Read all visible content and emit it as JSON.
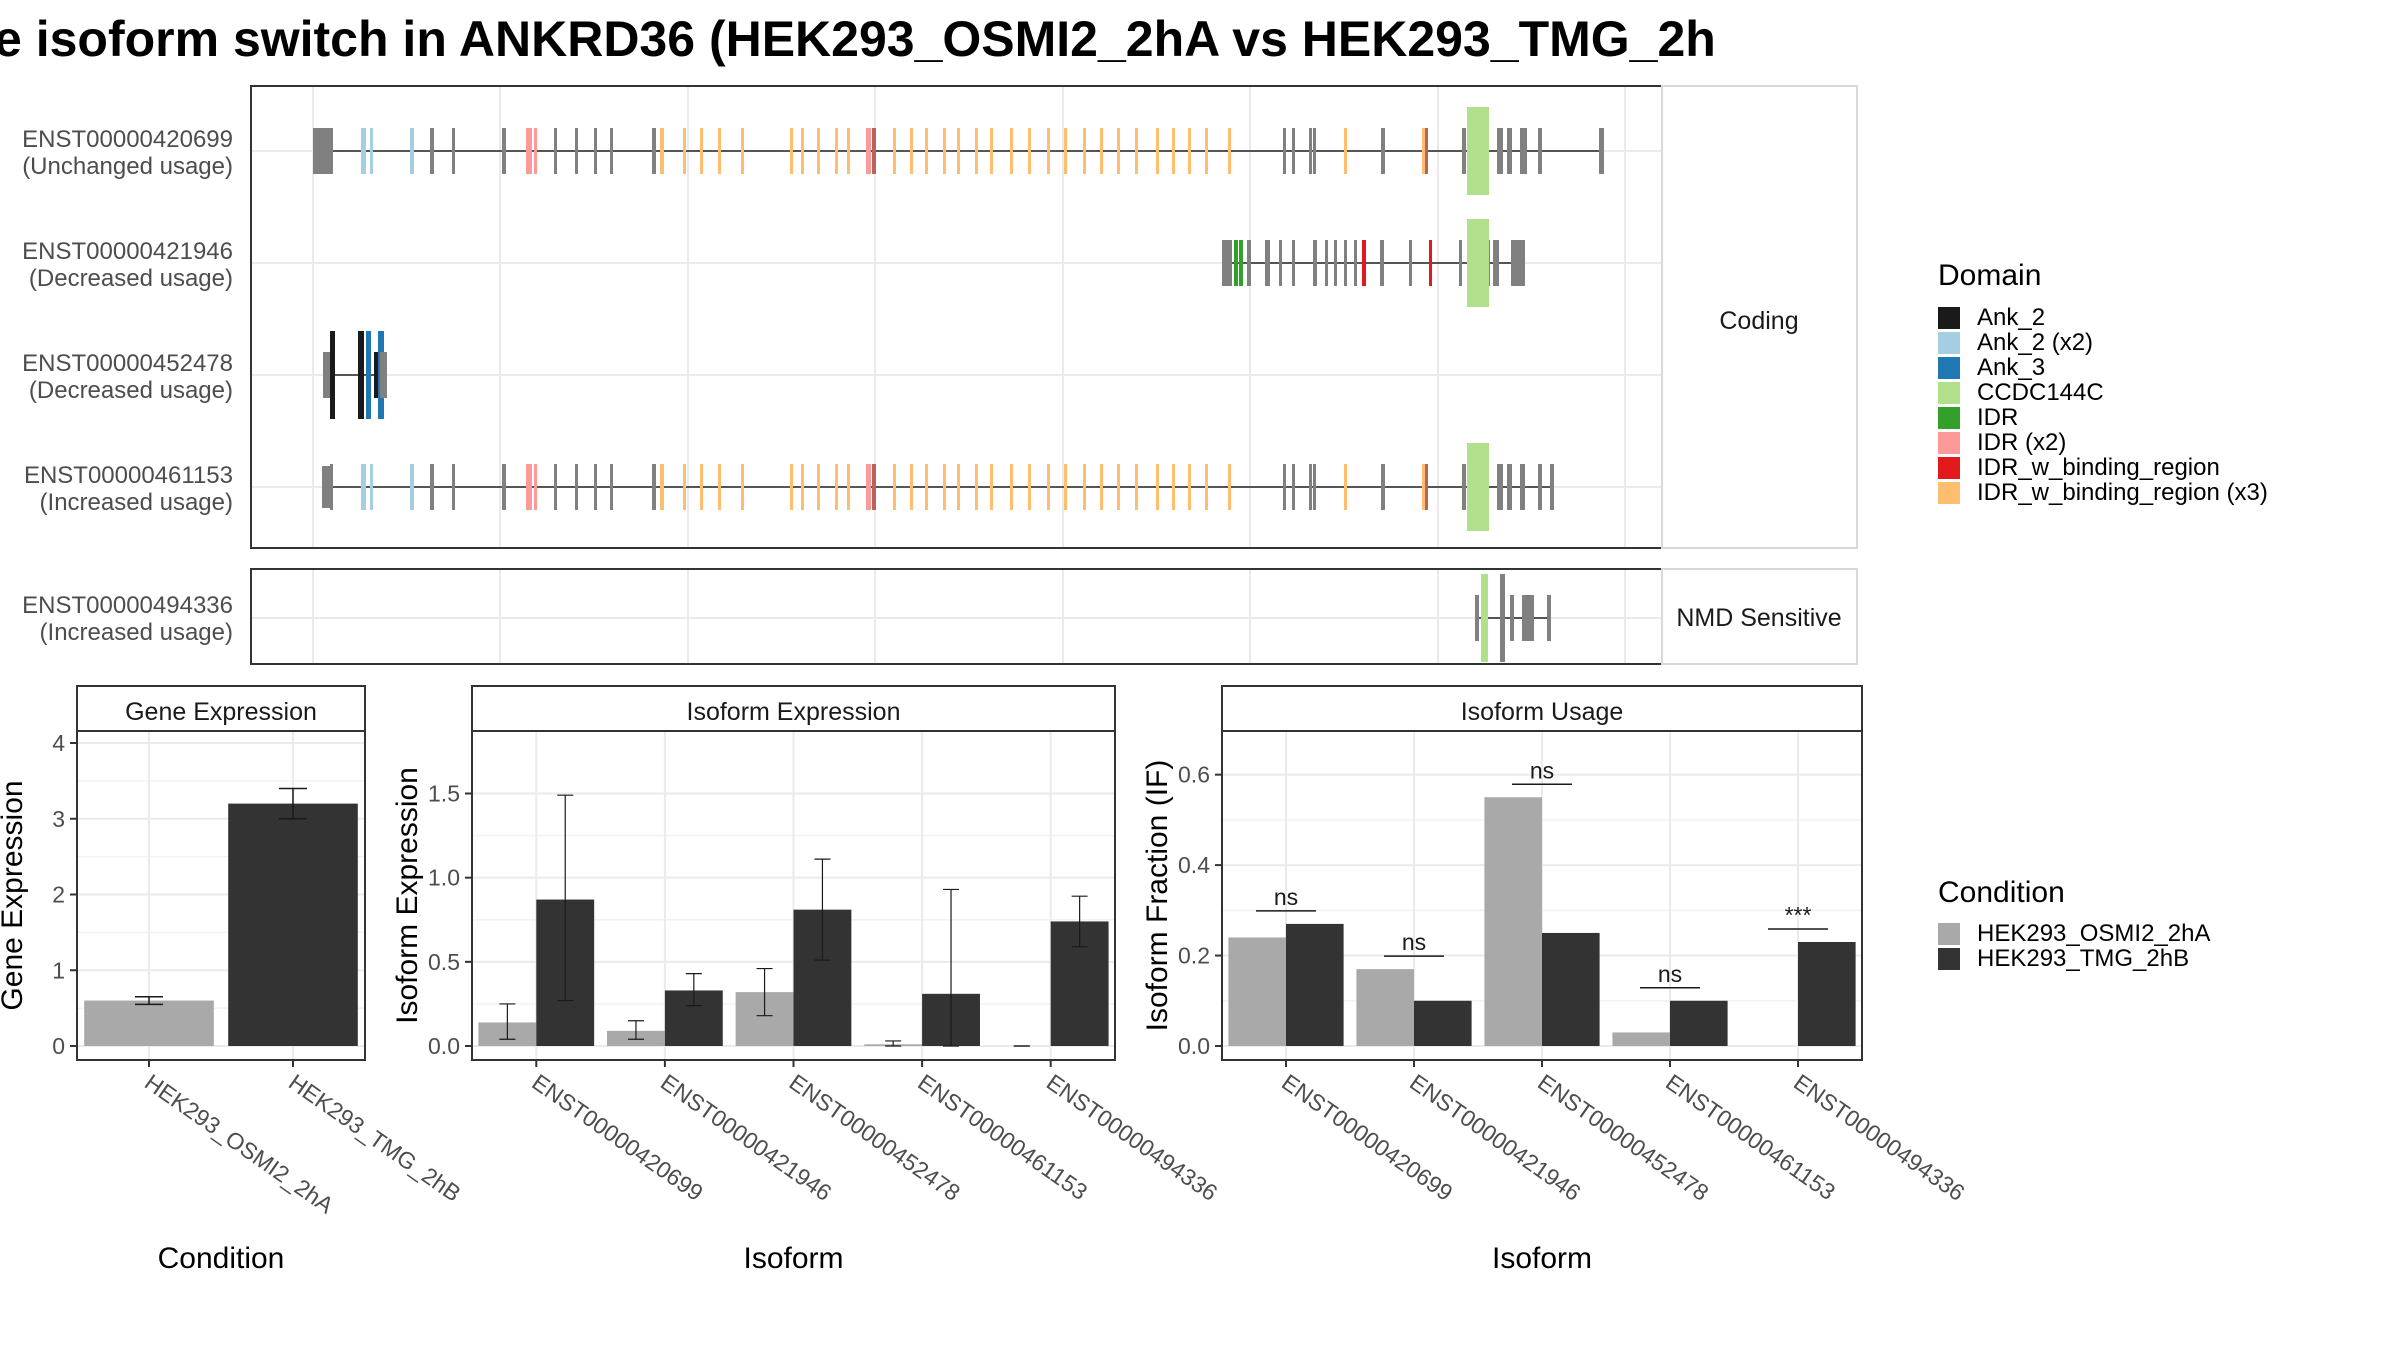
{
  "title": "e isoform switch in ANKRD36 (HEK293_OSMI2_2hA vs HEK293_TMG_2h",
  "structure": {
    "coding_label": "Coding",
    "nmd_label": "NMD Sensitive",
    "isoforms": [
      {
        "id": "ENST00000420699",
        "usage": "(Unchanged usage)",
        "group": "coding"
      },
      {
        "id": "ENST00000421946",
        "usage": "(Decreased usage)",
        "group": "coding"
      },
      {
        "id": "ENST00000452478",
        "usage": "(Decreased usage)",
        "group": "coding"
      },
      {
        "id": "ENST00000461153",
        "usage": "(Increased usage)",
        "group": "coding"
      },
      {
        "id": "ENST00000494336",
        "usage": "(Increased usage)",
        "group": "nmd"
      }
    ]
  },
  "legend_domain": {
    "title": "Domain",
    "items": [
      {
        "label": "Ank_2",
        "color": "#1a1a1a"
      },
      {
        "label": "Ank_2 (x2)",
        "color": "#a6cee3"
      },
      {
        "label": "Ank_3",
        "color": "#1f78b4"
      },
      {
        "label": "CCDC144C",
        "color": "#b2df8a"
      },
      {
        "label": "IDR",
        "color": "#33a02c"
      },
      {
        "label": "IDR (x2)",
        "color": "#fb9a99"
      },
      {
        "label": "IDR_w_binding_region",
        "color": "#e31a1c"
      },
      {
        "label": "IDR_w_binding_region (x3)",
        "color": "#fdbf6f"
      }
    ]
  },
  "legend_condition": {
    "title": "Condition",
    "items": [
      {
        "label": "HEK293_OSMI2_2hA",
        "color": "#a9a9a9"
      },
      {
        "label": "HEK293_TMG_2hB",
        "color": "#333333"
      }
    ]
  },
  "chart_data": [
    {
      "type": "bar",
      "title": "Gene Expression",
      "xlabel": "Condition",
      "ylabel": "Gene Expression",
      "ylim": [
        0,
        4
      ],
      "yticks": [
        "0",
        "1",
        "2",
        "3",
        "4"
      ],
      "categories": [
        "HEK293_OSMI2_2hA",
        "HEK293_TMG_2hB"
      ],
      "values": [
        0.6,
        3.2
      ],
      "errors": [
        [
          0.55,
          0.65
        ],
        [
          3.0,
          3.4
        ]
      ],
      "colors": [
        "#a9a9a9",
        "#333333"
      ]
    },
    {
      "type": "bar",
      "title": "Isoform Expression",
      "xlabel": "Isoform",
      "ylabel": "Isoform Expression",
      "ylim": [
        0,
        1.8
      ],
      "yticks": [
        "0.0",
        "0.5",
        "1.0",
        "1.5"
      ],
      "categories": [
        "ENST00000420699",
        "ENST00000421946",
        "ENST00000452478",
        "ENST00000461153",
        "ENST00000494336"
      ],
      "series": [
        {
          "name": "HEK293_OSMI2_2hA",
          "values": [
            0.14,
            0.09,
            0.32,
            0.01,
            0.0
          ],
          "errors": [
            [
              0.04,
              0.25
            ],
            [
              0.04,
              0.15
            ],
            [
              0.18,
              0.46
            ],
            [
              0.0,
              0.03
            ],
            [
              0.0,
              0.0
            ]
          ]
        },
        {
          "name": "HEK293_TMG_2hB",
          "values": [
            0.87,
            0.33,
            0.81,
            0.31,
            0.74
          ],
          "errors": [
            [
              0.27,
              1.49
            ],
            [
              0.24,
              0.43
            ],
            [
              0.51,
              1.11
            ],
            [
              0.0,
              0.93
            ],
            [
              0.59,
              0.89
            ]
          ]
        }
      ]
    },
    {
      "type": "bar",
      "title": "Isoform Usage",
      "xlabel": "Isoform",
      "ylabel": "Isoform Fraction (IF)",
      "ylim": [
        0,
        0.67
      ],
      "yticks": [
        "0.0",
        "0.2",
        "0.4",
        "0.6"
      ],
      "categories": [
        "ENST00000420699",
        "ENST00000421946",
        "ENST00000452478",
        "ENST00000461153",
        "ENST00000494336"
      ],
      "series": [
        {
          "name": "HEK293_OSMI2_2hA",
          "values": [
            0.24,
            0.17,
            0.55,
            0.03,
            0.0
          ]
        },
        {
          "name": "HEK293_TMG_2hB",
          "values": [
            0.27,
            0.1,
            0.25,
            0.1,
            0.23
          ]
        }
      ],
      "significance": [
        "ns",
        "ns",
        "ns",
        "ns",
        "***"
      ]
    }
  ]
}
